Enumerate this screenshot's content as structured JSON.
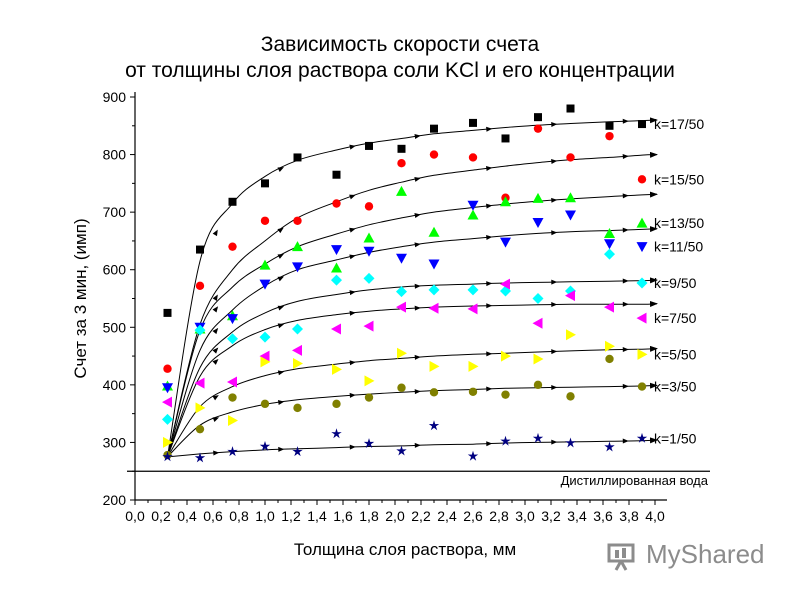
{
  "chart_data": {
    "type": "scatter",
    "title_lines": [
      "Зависимость скорости счета",
      "от толщины слоя раствора соли KCl и его концентрации"
    ],
    "xlabel": "Толщина слоя раствора, мм",
    "ylabel": "Счет за 3 мин, (имп)",
    "xlim": [
      0,
      4
    ],
    "ylim": [
      200,
      900
    ],
    "x_ticks": [
      "0,0",
      "0,2",
      "0,4",
      "0,6",
      "0,8",
      "1,0",
      "1,2",
      "1,4",
      "1,6",
      "1,8",
      "2,0",
      "2,2",
      "2,4",
      "2,6",
      "2,8",
      "3,0",
      "3,2",
      "3,4",
      "3,6",
      "3,8",
      "4,0"
    ],
    "y_ticks": [
      "200",
      "300",
      "400",
      "500",
      "600",
      "700",
      "800",
      "900"
    ],
    "baseline": {
      "label": "Дистиллированная вода",
      "y": 250
    },
    "x": [
      0.25,
      0.5,
      0.75,
      1.0,
      1.25,
      1.55,
      1.8,
      2.05,
      2.3,
      2.6,
      2.85,
      3.1,
      3.35,
      3.65,
      3.9
    ],
    "series": [
      {
        "name": "k=17/50",
        "marker": "square",
        "color": "#000000",
        "values": [
          525,
          635,
          718,
          750,
          795,
          765,
          815,
          810,
          845,
          855,
          828,
          865,
          880,
          850,
          853
        ],
        "fit": [
          275,
          615,
          715,
          762,
          790,
          808,
          820,
          828,
          836,
          842,
          847,
          851,
          854,
          857,
          859
        ]
      },
      {
        "name": "k=15/50",
        "marker": "circle",
        "color": "#ff0000",
        "values": [
          428,
          572,
          640,
          685,
          685,
          715,
          710,
          785,
          800,
          795,
          725,
          845,
          795,
          832,
          757
        ],
        "fit": [
          275,
          505,
          600,
          650,
          690,
          718,
          738,
          752,
          764,
          773,
          780,
          786,
          791,
          795,
          799
        ]
      },
      {
        "name": "k=13/50",
        "marker": "triangle-up",
        "color": "#00ff00",
        "values": [
          398,
          497,
          520,
          608,
          640,
          603,
          655,
          736,
          665,
          695,
          718,
          724,
          725,
          663,
          681
        ],
        "fit": [
          275,
          495,
          570,
          610,
          640,
          662,
          678,
          690,
          700,
          708,
          714,
          719,
          723,
          727,
          730
        ]
      },
      {
        "name": "k=11/50",
        "marker": "triangle-down",
        "color": "#0000ff",
        "values": [
          395,
          500,
          515,
          575,
          605,
          635,
          632,
          620,
          610,
          712,
          648,
          682,
          695,
          645,
          640
        ],
        "fit": [
          275,
          460,
          530,
          572,
          600,
          617,
          630,
          640,
          648,
          654,
          659,
          663,
          666,
          668,
          670
        ]
      },
      {
        "name": "k=9/50",
        "marker": "diamond",
        "color": "#00ffff",
        "values": [
          340,
          495,
          480,
          483,
          497,
          582,
          585,
          562,
          565,
          565,
          563,
          550,
          563,
          627,
          577
        ],
        "fit": [
          275,
          430,
          492,
          525,
          545,
          557,
          565,
          570,
          573,
          575,
          577,
          578,
          579,
          580,
          581
        ]
      },
      {
        "name": "k=7/50",
        "marker": "triangle-left",
        "color": "#ff00ff",
        "values": [
          370,
          403,
          405,
          450,
          460,
          497,
          502,
          535,
          533,
          532,
          575,
          507,
          555,
          535,
          516
        ],
        "fit": [
          275,
          415,
          468,
          496,
          512,
          522,
          528,
          532,
          535,
          537,
          538,
          539,
          540,
          540,
          540
        ]
      },
      {
        "name": "k=5/50",
        "marker": "triangle-right",
        "color": "#ffff00",
        "values": [
          300,
          360,
          338,
          440,
          437,
          427,
          407,
          455,
          432,
          432,
          450,
          445,
          487,
          467,
          453
        ],
        "fit": [
          275,
          362,
          397,
          416,
          428,
          436,
          442,
          446,
          450,
          453,
          455,
          457,
          459,
          461,
          462
        ]
      },
      {
        "name": "k=3/50",
        "marker": "circle",
        "color": "#808000",
        "values": [
          278,
          323,
          378,
          367,
          360,
          367,
          378,
          395,
          387,
          388,
          383,
          400,
          380,
          445,
          397
        ],
        "fit": [
          275,
          330,
          353,
          366,
          374,
          380,
          384,
          387,
          390,
          392,
          394,
          395,
          396,
          397,
          398
        ]
      },
      {
        "name": "k=1/50",
        "marker": "star",
        "color": "#000080",
        "values": [
          275,
          273,
          284,
          293,
          284,
          315,
          298,
          285,
          329,
          276,
          302,
          307,
          299,
          292,
          307
        ],
        "fit": [
          275,
          280,
          284,
          287,
          289,
          291,
          293,
          294,
          296,
          297,
          299,
          300,
          301,
          302,
          303
        ]
      }
    ]
  },
  "logo": {
    "text": "MyShared"
  }
}
